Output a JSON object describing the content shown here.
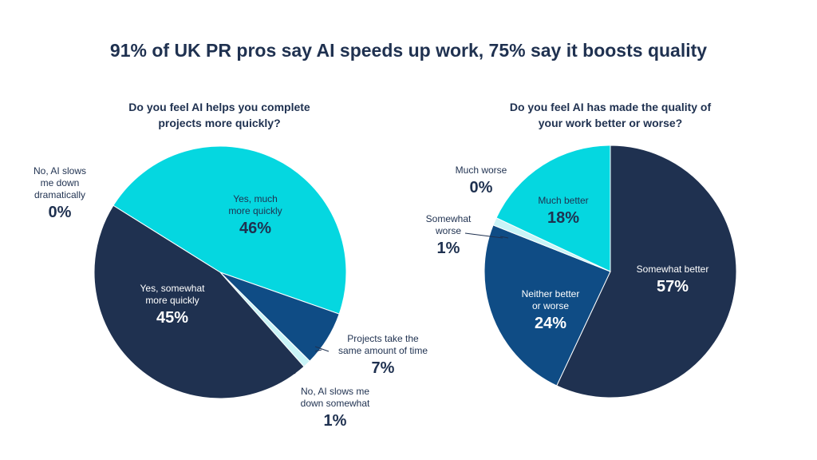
{
  "title": "91% of UK PR pros say AI speeds up work, 75% say it boosts quality",
  "colors": {
    "dark_navy": "#1f3150",
    "cyan": "#05d7e0",
    "mid_blue": "#0f4c85",
    "light_cyan": "#c9f4f7",
    "text_dark": "#1f3150",
    "text_white": "#ffffff"
  },
  "chart_data": [
    {
      "type": "pie",
      "title": "Do you feel AI helps you complete\nprojects more quickly?",
      "slices": [
        {
          "label": "Yes, much\nmore quickly",
          "value": 46,
          "display": "46%",
          "color": "#05d7e0"
        },
        {
          "label": "Projects take the\nsame amount of time",
          "value": 7,
          "display": "7%",
          "color": "#0f4c85"
        },
        {
          "label": "No, AI slows me\ndown somewhat",
          "value": 1,
          "display": "1%",
          "color": "#c9f4f7"
        },
        {
          "label": "Yes, somewhat\nmore quickly",
          "value": 45,
          "display": "45%",
          "color": "#1f3150"
        },
        {
          "label": "No, AI slows\nme down\ndramatically",
          "value": 0,
          "display": "0%",
          "color": "#e8e8e8"
        }
      ]
    },
    {
      "type": "pie",
      "title": "Do you feel AI has made the quality of\nyour work better or worse?",
      "slices": [
        {
          "label": "Somewhat better",
          "value": 57,
          "display": "57%",
          "color": "#1f3150"
        },
        {
          "label": "Neither better\nor worse",
          "value": 24,
          "display": "24%",
          "color": "#0f4c85"
        },
        {
          "label": "Somewhat\nworse",
          "value": 1,
          "display": "1%",
          "color": "#c9f4f7"
        },
        {
          "label": "Much better",
          "value": 18,
          "display": "18%",
          "color": "#05d7e0"
        },
        {
          "label": "Much worse",
          "value": 0,
          "display": "0%",
          "color": "#e8e8e8"
        }
      ]
    }
  ]
}
